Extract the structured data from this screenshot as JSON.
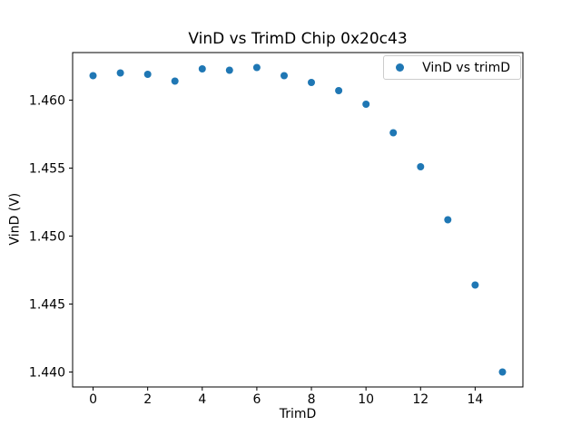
{
  "chart_data": {
    "type": "scatter",
    "title": "VinD vs TrimD Chip 0x20c43",
    "xlabel": "TrimD",
    "ylabel": "VinD (V)",
    "legend_entries": [
      "VinD vs trimD"
    ],
    "legend_position": "upper right",
    "marker_color": "#1f77b4",
    "grid": false,
    "x": [
      0,
      1,
      2,
      3,
      4,
      5,
      6,
      7,
      8,
      9,
      10,
      11,
      12,
      13,
      14,
      15
    ],
    "y": [
      1.4618,
      1.462,
      1.4619,
      1.4614,
      1.4623,
      1.4622,
      1.4624,
      1.4618,
      1.4613,
      1.4607,
      1.4597,
      1.4576,
      1.4551,
      1.4512,
      1.4464,
      1.44
    ],
    "xlim": [
      -0.75,
      15.75
    ],
    "ylim": [
      1.4389,
      1.4635
    ],
    "xticks": [
      0,
      2,
      4,
      6,
      8,
      10,
      12,
      14
    ],
    "xtick_labels": [
      "0",
      "2",
      "4",
      "6",
      "8",
      "10",
      "12",
      "14"
    ],
    "yticks": [
      1.44,
      1.445,
      1.45,
      1.455,
      1.46
    ],
    "ytick_labels": [
      "1.440",
      "1.445",
      "1.450",
      "1.455",
      "1.460"
    ]
  }
}
